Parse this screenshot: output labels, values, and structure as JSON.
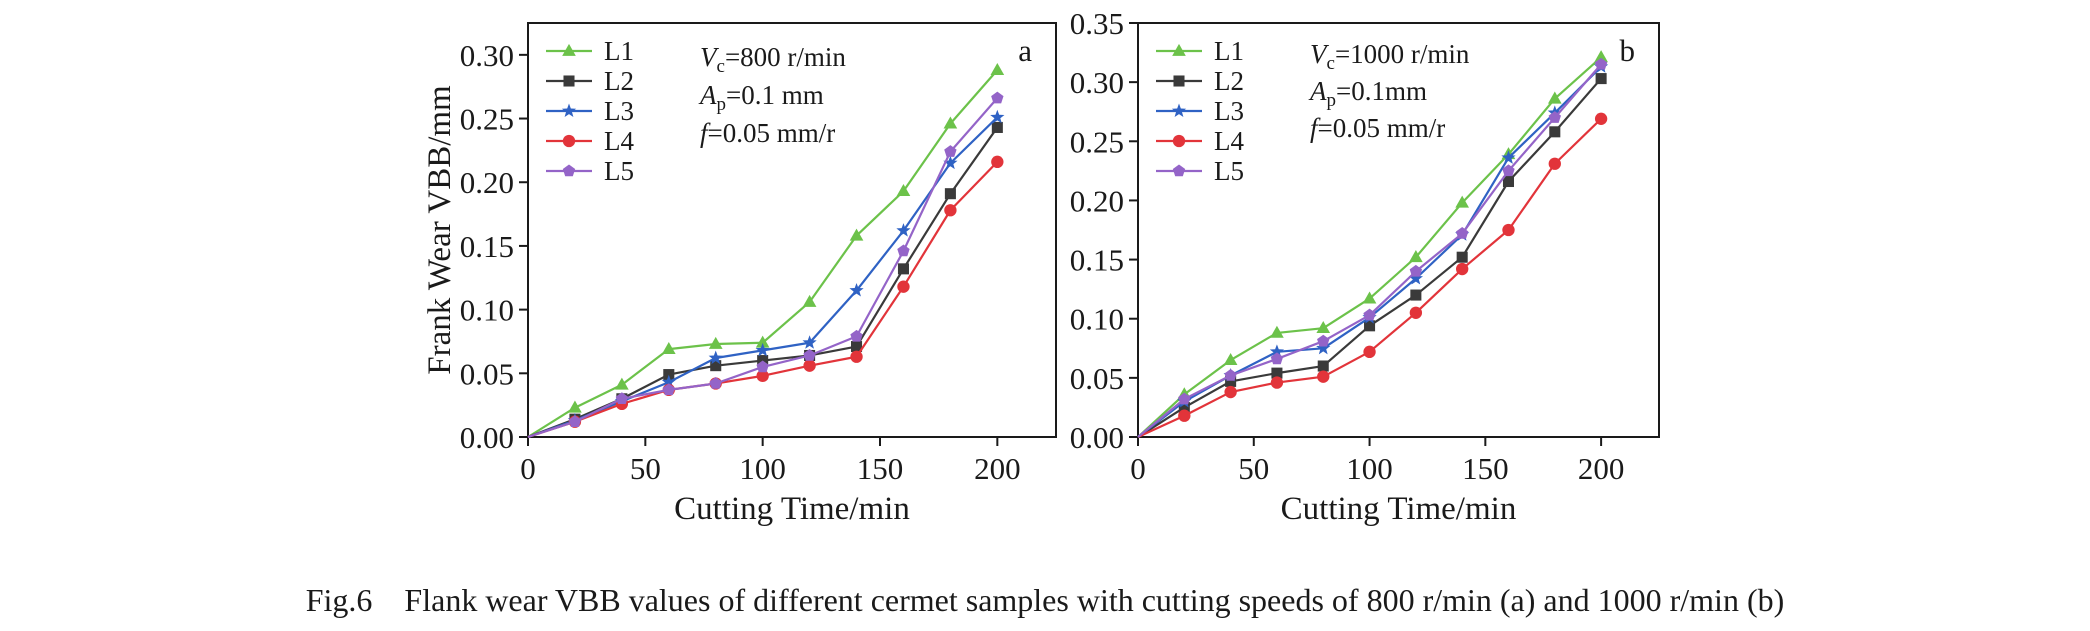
{
  "caption": "Fig.6 Flank wear VBB values of different cermet samples with cutting speeds of 800 r/min (a) and 1000 r/min (b)",
  "colors": {
    "L1": "#6cc24a",
    "L2": "#3a3a3a",
    "L3": "#2f62c4",
    "L4": "#e2343a",
    "L5": "#9464c8"
  },
  "markers": {
    "L1": "triangle",
    "L2": "square",
    "L3": "star",
    "L4": "circle",
    "L5": "pentagon"
  },
  "chart_data": [
    {
      "type": "line",
      "panel_label": "a",
      "xlabel": "Cutting Time/min",
      "ylabel": "Frank Wear VBB/mm",
      "xlim": [
        0,
        225
      ],
      "ylim": [
        0,
        0.325
      ],
      "xticks": [
        "0",
        "50",
        "100",
        "150",
        "200"
      ],
      "xtick_values": [
        0,
        50,
        100,
        150,
        200
      ],
      "yticks": [
        "0.00",
        "0.05",
        "0.10",
        "0.15",
        "0.20",
        "0.25",
        "0.30"
      ],
      "ytick_values": [
        0,
        0.05,
        0.1,
        0.15,
        0.2,
        0.25,
        0.3
      ],
      "legend_position": "top-left",
      "parameters": {
        "vc": "=800 r/min",
        "ap": "=0.1 mm",
        "f": "=0.05 mm/r"
      },
      "x": [
        0,
        20,
        40,
        60,
        80,
        100,
        120,
        140,
        160,
        180,
        200
      ],
      "series": [
        {
          "name": "L1",
          "values": [
            0,
            0.023,
            0.041,
            0.069,
            0.073,
            0.074,
            0.106,
            0.158,
            0.193,
            0.246,
            0.288
          ]
        },
        {
          "name": "L2",
          "values": [
            0,
            0.014,
            0.03,
            0.049,
            0.056,
            0.06,
            0.064,
            0.071,
            0.132,
            0.191,
            0.243
          ]
        },
        {
          "name": "L3",
          "values": [
            0,
            0.013,
            0.028,
            0.043,
            0.062,
            0.068,
            0.074,
            0.115,
            0.162,
            0.215,
            0.251
          ]
        },
        {
          "name": "L4",
          "values": [
            0,
            0.012,
            0.026,
            0.037,
            0.042,
            0.048,
            0.056,
            0.063,
            0.118,
            0.178,
            0.216
          ]
        },
        {
          "name": "L5",
          "values": [
            0,
            0.012,
            0.03,
            0.037,
            0.042,
            0.055,
            0.064,
            0.079,
            0.146,
            0.224,
            0.266
          ]
        }
      ]
    },
    {
      "type": "line",
      "panel_label": "b",
      "xlabel": "Cutting Time/min",
      "ylabel": "",
      "xlim": [
        0,
        225
      ],
      "ylim": [
        0,
        0.35
      ],
      "xticks": [
        "0",
        "50",
        "100",
        "150",
        "200"
      ],
      "xtick_values": [
        0,
        50,
        100,
        150,
        200
      ],
      "yticks": [
        "0.00",
        "0.05",
        "0.10",
        "0.15",
        "0.20",
        "0.25",
        "0.30",
        "0.35"
      ],
      "ytick_values": [
        0,
        0.05,
        0.1,
        0.15,
        0.2,
        0.25,
        0.3,
        0.35
      ],
      "legend_position": "top-left",
      "parameters": {
        "vc": "=1000 r/min",
        "ap": "=0.1mm",
        "f": "=0.05 mm/r"
      },
      "x": [
        0,
        20,
        40,
        60,
        80,
        100,
        120,
        140,
        160,
        180,
        200
      ],
      "series": [
        {
          "name": "L1",
          "values": [
            0,
            0.036,
            0.065,
            0.088,
            0.092,
            0.117,
            0.152,
            0.198,
            0.239,
            0.286,
            0.321
          ]
        },
        {
          "name": "L2",
          "values": [
            0,
            0.025,
            0.047,
            0.054,
            0.06,
            0.094,
            0.12,
            0.152,
            0.216,
            0.258,
            0.303
          ]
        },
        {
          "name": "L3",
          "values": [
            0,
            0.03,
            0.052,
            0.072,
            0.075,
            0.101,
            0.134,
            0.171,
            0.236,
            0.274,
            0.313
          ]
        },
        {
          "name": "L4",
          "values": [
            0,
            0.018,
            0.038,
            0.046,
            0.051,
            0.072,
            0.105,
            0.142,
            0.175,
            0.231,
            0.269
          ]
        },
        {
          "name": "L5",
          "values": [
            0,
            0.032,
            0.052,
            0.066,
            0.081,
            0.103,
            0.14,
            0.172,
            0.225,
            0.27,
            0.315
          ]
        }
      ]
    }
  ]
}
